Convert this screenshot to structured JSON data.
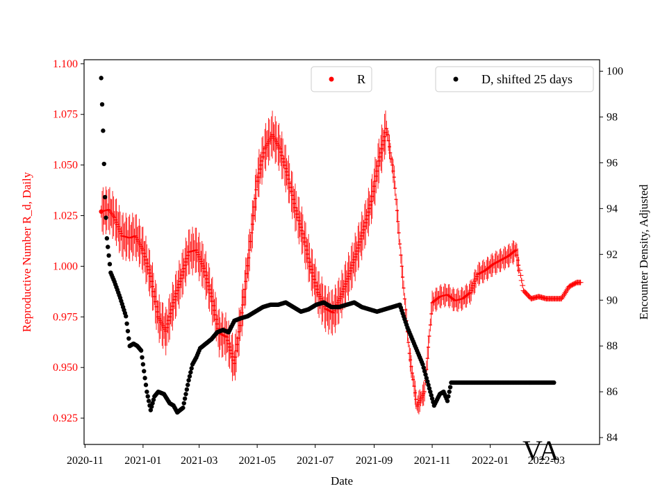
{
  "chart_data": {
    "type": "scatter",
    "title": "",
    "state_label": "VA",
    "xlabel": "Date",
    "ylabel_left": "Reproductive Number R_d, Daily",
    "ylabel_right": "Encounter Density, Adjusted",
    "left_color": "#ff0000",
    "right_color": "#000000",
    "x_range": [
      "2020-10-31",
      "2022-04-26"
    ],
    "y_left_range": [
      0.912,
      1.102
    ],
    "y_right_range": [
      83.7,
      100.5
    ],
    "x_ticks": [
      "2020-11",
      "2021-01",
      "2021-03",
      "2021-05",
      "2021-07",
      "2021-09",
      "2021-11",
      "2022-01",
      "2022-03"
    ],
    "x_tick_dates": [
      "2020-11-01",
      "2021-01-01",
      "2021-03-01",
      "2021-05-01",
      "2021-07-01",
      "2021-09-01",
      "2021-11-01",
      "2022-01-01",
      "2022-03-01"
    ],
    "y_left_ticks": [
      "0.925",
      "0.950",
      "0.975",
      "1.000",
      "1.025",
      "1.050",
      "1.075",
      "1.100"
    ],
    "y_right_ticks": [
      "84",
      "86",
      "88",
      "90",
      "92",
      "94",
      "96",
      "98",
      "100"
    ],
    "legend": {
      "r_label": "R",
      "d_label": "D, shifted 25 days"
    },
    "series": [
      {
        "name": "R",
        "axis": "left",
        "start_date": "2020-11-18",
        "x_days": [
          0,
          8,
          14,
          22,
          30,
          36,
          44,
          52,
          60,
          68,
          76,
          84,
          92,
          100,
          108,
          116,
          124,
          132,
          140,
          148,
          156,
          164,
          172,
          180,
          188,
          196,
          204,
          212,
          220,
          228,
          236,
          244,
          252,
          260,
          268,
          276,
          284,
          292,
          300,
          308,
          316,
          324,
          332,
          340,
          348,
          356,
          364,
          372,
          380,
          388,
          396,
          404,
          412,
          420,
          428,
          436,
          444,
          452,
          460,
          468,
          476,
          484,
          492,
          500,
          504
        ],
        "values": [
          1.027,
          1.028,
          1.024,
          1.015,
          1.014,
          1.015,
          1.008,
          0.995,
          0.975,
          0.968,
          0.982,
          0.994,
          1.007,
          1.008,
          0.999,
          0.985,
          0.967,
          0.965,
          0.952,
          0.977,
          1.008,
          1.042,
          1.058,
          1.065,
          1.058,
          1.045,
          1.029,
          1.016,
          1.0,
          0.987,
          0.979,
          0.977,
          0.985,
          0.995,
          1.006,
          1.018,
          1.032,
          1.052,
          1.068,
          1.044,
          1.0,
          0.957,
          0.931,
          0.938,
          0.982,
          0.985,
          0.986,
          0.983,
          0.984,
          0.987,
          0.996,
          0.998,
          1.001,
          1.003,
          1.005,
          1.008,
          0.988,
          0.984,
          0.985,
          0.984,
          0.984,
          0.984,
          0.99,
          0.992,
          0.992
        ]
      },
      {
        "name": "D, shifted 25 days",
        "axis": "right",
        "start_date": "2020-11-18",
        "x_days": [
          0,
          2,
          4,
          6,
          10,
          14,
          20,
          26,
          30,
          34,
          38,
          42,
          48,
          52,
          56,
          60,
          66,
          72,
          76,
          80,
          86,
          92,
          96,
          100,
          104,
          110,
          116,
          122,
          128,
          134,
          140,
          146,
          154,
          162,
          170,
          178,
          186,
          194,
          202,
          210,
          218,
          226,
          234,
          242,
          250,
          258,
          266,
          274,
          282,
          290,
          298,
          306,
          314,
          322,
          330,
          338,
          344,
          350,
          356,
          360,
          364,
          368,
          372,
          376,
          380,
          384,
          390,
          400,
          410,
          420,
          430,
          440,
          450,
          460,
          470,
          476
        ],
        "values": [
          99.7,
          97.4,
          94.5,
          92.7,
          91.2,
          90.8,
          90.1,
          89.3,
          88.0,
          88.1,
          88.0,
          87.8,
          86.0,
          85.2,
          85.8,
          86.0,
          85.9,
          85.5,
          85.4,
          85.1,
          85.3,
          86.5,
          87.2,
          87.5,
          87.9,
          88.1,
          88.3,
          88.6,
          88.7,
          88.6,
          89.1,
          89.2,
          89.3,
          89.5,
          89.7,
          89.8,
          89.8,
          89.9,
          89.7,
          89.5,
          89.6,
          89.8,
          89.9,
          89.7,
          89.7,
          89.8,
          89.9,
          89.7,
          89.6,
          89.5,
          89.6,
          89.7,
          89.8,
          88.8,
          88.0,
          87.2,
          86.3,
          85.4,
          85.9,
          86.0,
          85.6,
          86.4,
          86.4,
          86.4,
          86.4,
          86.4,
          86.4,
          86.4,
          86.4,
          86.4,
          86.4,
          86.4,
          86.4,
          86.4,
          86.4,
          86.4
        ]
      }
    ]
  }
}
